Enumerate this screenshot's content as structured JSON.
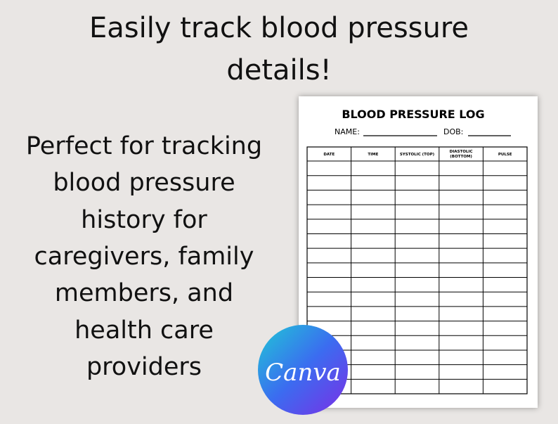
{
  "headline": [
    "Easily track blood pressure",
    "details!"
  ],
  "description": [
    "Perfect for tracking",
    "blood pressure",
    "history for",
    "caregivers, family",
    "members, and",
    "health care",
    "providers"
  ],
  "document": {
    "title": "BLOOD PRESSURE LOG",
    "name_label": "NAME:",
    "dob_label": "DOB:",
    "columns": [
      "DATE",
      "TIME",
      "SYSTOLIC (TOP)",
      "DIASTOLIC (BOTTOM)",
      "PULSE"
    ]
  },
  "badge": {
    "label": "Canva"
  }
}
